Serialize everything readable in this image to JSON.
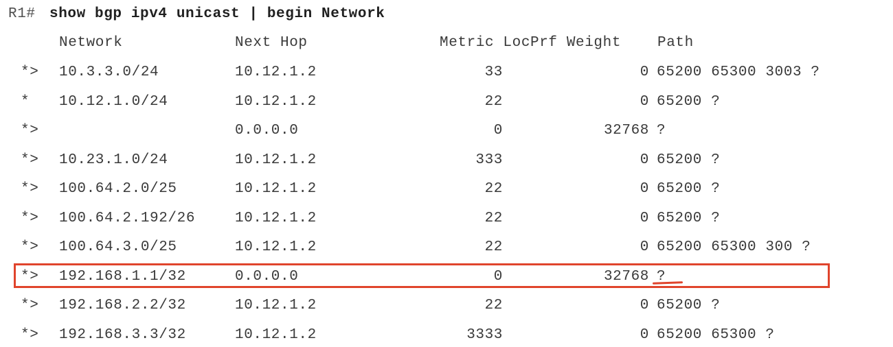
{
  "terminal": {
    "prompt": "R1#",
    "command": "show bgp ipv4 unicast | begin Network",
    "headers": {
      "network": "Network",
      "next_hop": "Next Hop",
      "metric_locprf_weight": "Metric LocPrf Weight",
      "path": "Path"
    },
    "rows": [
      {
        "status": "*>",
        "network": "10.3.3.0/24",
        "next_hop": "10.12.1.2",
        "metric": "33",
        "weight": "0",
        "path": "65200 65300 3003 ?"
      },
      {
        "status": "*",
        "network": "10.12.1.0/24",
        "next_hop": "10.12.1.2",
        "metric": "22",
        "weight": "0",
        "path": "65200 ?"
      },
      {
        "status": "*>",
        "network": "",
        "next_hop": "0.0.0.0",
        "metric": "0",
        "weight": "32768",
        "path": "?"
      },
      {
        "status": "*>",
        "network": "10.23.1.0/24",
        "next_hop": "10.12.1.2",
        "metric": "333",
        "weight": "0",
        "path": "65200 ?"
      },
      {
        "status": "*>",
        "network": "100.64.2.0/25",
        "next_hop": "10.12.1.2",
        "metric": "22",
        "weight": "0",
        "path": "65200 ?"
      },
      {
        "status": "*>",
        "network": "100.64.2.192/26",
        "next_hop": "10.12.1.2",
        "metric": "22",
        "weight": "0",
        "path": "65200 ?"
      },
      {
        "status": "*>",
        "network": "100.64.3.0/25",
        "next_hop": "10.12.1.2",
        "metric": "22",
        "weight": "0",
        "path": "65200 65300 300 ?"
      },
      {
        "status": "*>",
        "network": "192.168.1.1/32",
        "next_hop": "0.0.0.0",
        "metric": "0",
        "weight": "32768",
        "path": "?"
      },
      {
        "status": "*>",
        "network": "192.168.2.2/32",
        "next_hop": "10.12.1.2",
        "metric": "22",
        "weight": "0",
        "path": "65200 ?"
      },
      {
        "status": "*>",
        "network": "192.168.3.3/32",
        "next_hop": "10.12.1.2",
        "metric": "3333",
        "weight": "0",
        "path": "65200 65300 ?"
      }
    ],
    "highlighted_row_index": 7,
    "annotation_color": "#e0442c"
  }
}
